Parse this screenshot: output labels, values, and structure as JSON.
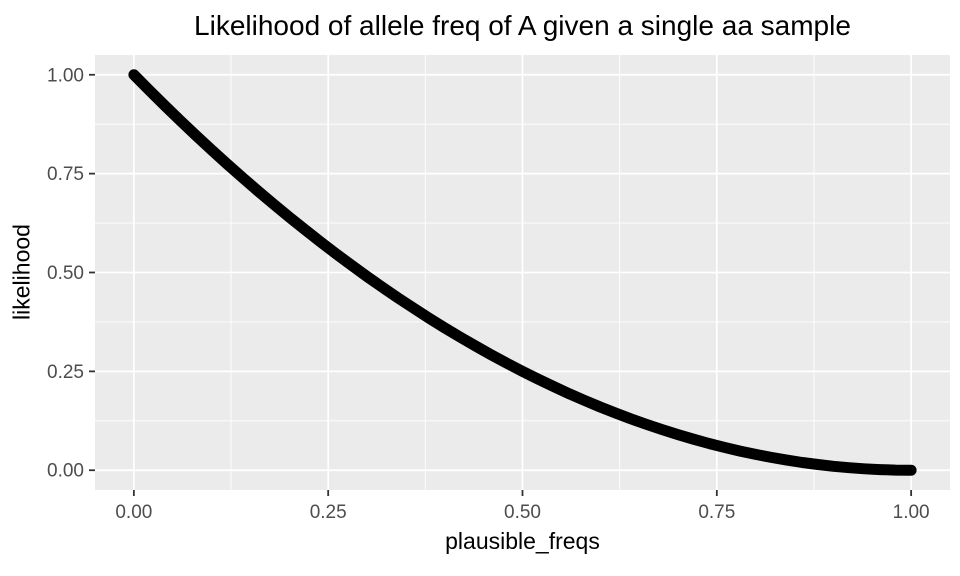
{
  "chart_data": {
    "type": "line",
    "title": "Likelihood of allele freq of A given a single aa sample",
    "xlabel": "plausible_freqs",
    "ylabel": "likelihood",
    "x_tick_labels": [
      "0.00",
      "0.25",
      "0.50",
      "0.75",
      "1.00"
    ],
    "x_tick_values": [
      0,
      0.25,
      0.5,
      0.75,
      1
    ],
    "y_tick_labels": [
      "0.00",
      "0.25",
      "0.50",
      "0.75",
      "1.00"
    ],
    "y_tick_values": [
      0,
      0.25,
      0.5,
      0.75,
      1
    ],
    "x_minor": [
      0.125,
      0.375,
      0.625,
      0.875
    ],
    "y_minor": [
      0.125,
      0.375,
      0.625,
      0.875
    ],
    "xlim": [
      -0.05,
      1.05
    ],
    "ylim": [
      -0.05,
      1.05
    ],
    "grid": true,
    "legend": "none",
    "panel_background": "#EBEBEB",
    "grid_color": "#FFFFFF",
    "tick_color": "#333333",
    "axis_text_color": "#4D4D4D",
    "line_color": "#000000",
    "relationship": "likelihood = (1 - plausible_freq)^2",
    "series": [
      {
        "name": "likelihood",
        "x": [
          0,
          0.02,
          0.04,
          0.06,
          0.08,
          0.1,
          0.12,
          0.14,
          0.16,
          0.18,
          0.2,
          0.22,
          0.24,
          0.26,
          0.28,
          0.3,
          0.32,
          0.34,
          0.36,
          0.38,
          0.4,
          0.42,
          0.44,
          0.46,
          0.48,
          0.5,
          0.52,
          0.54,
          0.56,
          0.58,
          0.6,
          0.62,
          0.64,
          0.66,
          0.68,
          0.7,
          0.72,
          0.74,
          0.76,
          0.78,
          0.8,
          0.82,
          0.84,
          0.86,
          0.88,
          0.9,
          0.92,
          0.94,
          0.96,
          0.98,
          1
        ],
        "y": [
          1,
          0.9604,
          0.9216,
          0.8836,
          0.8464,
          0.81,
          0.7744,
          0.7396,
          0.7056,
          0.6724,
          0.64,
          0.6084,
          0.5776,
          0.5476,
          0.5184,
          0.49,
          0.4624,
          0.4356,
          0.4096,
          0.3844,
          0.36,
          0.3364,
          0.3136,
          0.2916,
          0.2704,
          0.25,
          0.2304,
          0.2116,
          0.1936,
          0.1764,
          0.16,
          0.1444,
          0.1296,
          0.1156,
          0.1024,
          0.09,
          0.0784,
          0.0676,
          0.0576,
          0.0484,
          0.04,
          0.0324,
          0.0256,
          0.0196,
          0.0144,
          0.01,
          0.0064,
          0.0036,
          0.0016,
          0.0004,
          0
        ]
      }
    ]
  }
}
